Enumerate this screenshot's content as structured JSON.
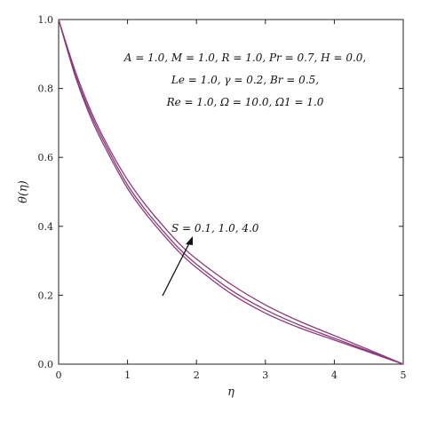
{
  "chart_data": {
    "type": "line",
    "title": "",
    "xlabel": "η",
    "ylabel": "θ(η)",
    "xlim": [
      0,
      5
    ],
    "ylim": [
      0,
      1
    ],
    "x_ticks": [
      "0",
      "1",
      "2",
      "3",
      "4",
      "5"
    ],
    "y_ticks": [
      "0.0",
      "0.2",
      "0.4",
      "0.6",
      "0.8",
      "1.0"
    ],
    "grid": false,
    "line_color": "#8B3A7A",
    "parameter_lines": [
      "A = 1.0, M = 1.0, R = 1.0, Pr = 0.7, H = 0.0,",
      "Le = 1.0, γ = 0.2, Br = 0.5,",
      "Re = 1.0, Ω = 10.0, Ω1 = 1.0"
    ],
    "annotation": "S = 0.1, 1.0, 4.0",
    "x": [
      0,
      0.25,
      0.5,
      0.75,
      1.0,
      1.25,
      1.5,
      1.75,
      2.0,
      2.5,
      3.0,
      3.5,
      4.0,
      4.5,
      5.0
    ],
    "series": [
      {
        "values": [
          1.0,
          0.83,
          0.7,
          0.6,
          0.51,
          0.44,
          0.38,
          0.325,
          0.28,
          0.205,
          0.148,
          0.105,
          0.07,
          0.035,
          0.0
        ]
      },
      {
        "values": [
          1.0,
          0.835,
          0.71,
          0.61,
          0.52,
          0.45,
          0.39,
          0.335,
          0.29,
          0.215,
          0.158,
          0.113,
          0.075,
          0.038,
          0.0
        ]
      },
      {
        "values": [
          1.0,
          0.845,
          0.72,
          0.62,
          0.535,
          0.465,
          0.405,
          0.35,
          0.305,
          0.232,
          0.172,
          0.124,
          0.083,
          0.042,
          0.0
        ]
      }
    ]
  }
}
